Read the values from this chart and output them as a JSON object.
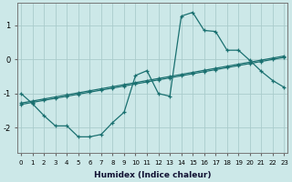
{
  "xlabel": "Humidex (Indice chaleur)",
  "xlim": [
    -0.3,
    23.3
  ],
  "ylim": [
    -2.75,
    1.65
  ],
  "bg_color": "#cce8e8",
  "grid_color": "#aacccc",
  "line_color": "#1a7070",
  "line1_x": [
    0,
    1,
    2,
    3,
    4,
    5,
    6,
    7,
    8,
    9,
    10,
    11,
    12,
    13,
    14,
    15,
    16,
    17,
    18,
    19,
    20,
    21,
    22,
    23
  ],
  "line1_y": [
    -1.0,
    -1.3,
    -1.65,
    -1.95,
    -1.95,
    -2.27,
    -2.27,
    -2.2,
    -1.85,
    -1.55,
    -0.47,
    -0.33,
    -1.0,
    -1.08,
    1.27,
    1.38,
    0.85,
    0.82,
    0.27,
    0.27,
    -0.03,
    -0.35,
    -0.62,
    -0.82
  ],
  "line2_x": [
    0,
    1,
    2,
    3,
    4,
    5,
    6,
    7,
    8,
    9,
    10,
    11,
    12,
    13,
    14,
    15,
    16,
    17,
    18,
    19,
    20,
    21,
    22,
    23
  ],
  "line2_y": [
    -1.28,
    -1.22,
    -1.16,
    -1.1,
    -1.04,
    -0.98,
    -0.92,
    -0.86,
    -0.8,
    -0.74,
    -0.68,
    -0.62,
    -0.56,
    -0.5,
    -0.44,
    -0.38,
    -0.32,
    -0.26,
    -0.2,
    -0.14,
    -0.08,
    -0.02,
    0.04,
    0.1
  ],
  "line3_x": [
    0,
    1,
    2,
    3,
    4,
    5,
    6,
    7,
    8,
    9,
    10,
    11,
    12,
    13,
    14,
    15,
    16,
    17,
    18,
    19,
    20,
    21,
    22,
    23
  ],
  "line3_y": [
    -1.32,
    -1.26,
    -1.2,
    -1.14,
    -1.08,
    -1.02,
    -0.96,
    -0.9,
    -0.84,
    -0.78,
    -0.72,
    -0.66,
    -0.6,
    -0.54,
    -0.48,
    -0.42,
    -0.36,
    -0.3,
    -0.24,
    -0.18,
    -0.12,
    -0.06,
    0.0,
    0.06
  ],
  "ytick_values": [
    -2,
    -1,
    0,
    1
  ],
  "xtick_labels": [
    "0",
    "1",
    "2",
    "3",
    "4",
    "5",
    "6",
    "7",
    "8",
    "9",
    "10",
    "11",
    "12",
    "13",
    "14",
    "15",
    "16",
    "17",
    "18",
    "19",
    "20",
    "21",
    "22",
    "23"
  ]
}
